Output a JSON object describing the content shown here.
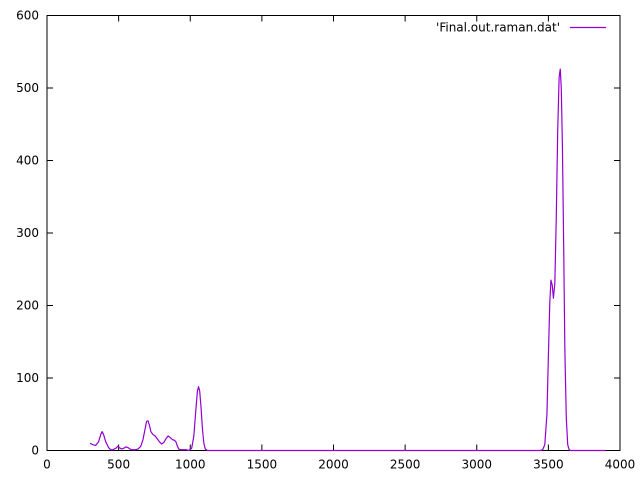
{
  "chart_data": {
    "type": "line",
    "xlim": [
      0,
      4000
    ],
    "ylim": [
      0,
      600
    ],
    "x_ticks": [
      0,
      500,
      1000,
      1500,
      2000,
      2500,
      3000,
      3500,
      4000
    ],
    "y_ticks": [
      0,
      100,
      200,
      300,
      400,
      500,
      600
    ],
    "grid": false,
    "legend_position": "top-right",
    "series": [
      {
        "name": "'Final.out.raman.dat'",
        "color": "#9400d3",
        "points": [
          [
            300,
            10
          ],
          [
            320,
            8
          ],
          [
            340,
            7
          ],
          [
            360,
            12
          ],
          [
            375,
            22
          ],
          [
            385,
            26
          ],
          [
            395,
            22
          ],
          [
            410,
            12
          ],
          [
            430,
            4
          ],
          [
            445,
            1
          ],
          [
            460,
            1
          ],
          [
            480,
            3
          ],
          [
            495,
            6
          ],
          [
            505,
            4
          ],
          [
            520,
            2
          ],
          [
            535,
            3
          ],
          [
            550,
            5
          ],
          [
            565,
            4
          ],
          [
            580,
            2
          ],
          [
            595,
            1
          ],
          [
            615,
            1
          ],
          [
            635,
            2
          ],
          [
            655,
            6
          ],
          [
            670,
            15
          ],
          [
            685,
            30
          ],
          [
            695,
            40
          ],
          [
            705,
            41
          ],
          [
            715,
            35
          ],
          [
            725,
            26
          ],
          [
            740,
            22
          ],
          [
            755,
            20
          ],
          [
            770,
            16
          ],
          [
            785,
            12
          ],
          [
            800,
            9
          ],
          [
            815,
            11
          ],
          [
            830,
            16
          ],
          [
            845,
            20
          ],
          [
            860,
            18
          ],
          [
            875,
            15
          ],
          [
            890,
            14
          ],
          [
            900,
            12
          ],
          [
            910,
            6
          ],
          [
            920,
            2
          ],
          [
            935,
            1
          ],
          [
            950,
            1
          ],
          [
            975,
            1
          ],
          [
            990,
            0
          ],
          [
            1010,
            3
          ],
          [
            1025,
            20
          ],
          [
            1040,
            58
          ],
          [
            1050,
            82
          ],
          [
            1058,
            88
          ],
          [
            1066,
            82
          ],
          [
            1075,
            60
          ],
          [
            1085,
            30
          ],
          [
            1095,
            10
          ],
          [
            1105,
            2
          ],
          [
            1120,
            0
          ],
          [
            1200,
            0
          ],
          [
            3300,
            0
          ],
          [
            3440,
            0
          ],
          [
            3460,
            1
          ],
          [
            3475,
            8
          ],
          [
            3490,
            50
          ],
          [
            3500,
            130
          ],
          [
            3510,
            205
          ],
          [
            3518,
            235
          ],
          [
            3527,
            228
          ],
          [
            3535,
            210
          ],
          [
            3545,
            230
          ],
          [
            3555,
            320
          ],
          [
            3565,
            440
          ],
          [
            3575,
            515
          ],
          [
            3583,
            526
          ],
          [
            3590,
            500
          ],
          [
            3598,
            420
          ],
          [
            3607,
            280
          ],
          [
            3615,
            140
          ],
          [
            3625,
            45
          ],
          [
            3635,
            8
          ],
          [
            3645,
            1
          ],
          [
            3655,
            0
          ],
          [
            3900,
            0
          ]
        ]
      }
    ]
  }
}
